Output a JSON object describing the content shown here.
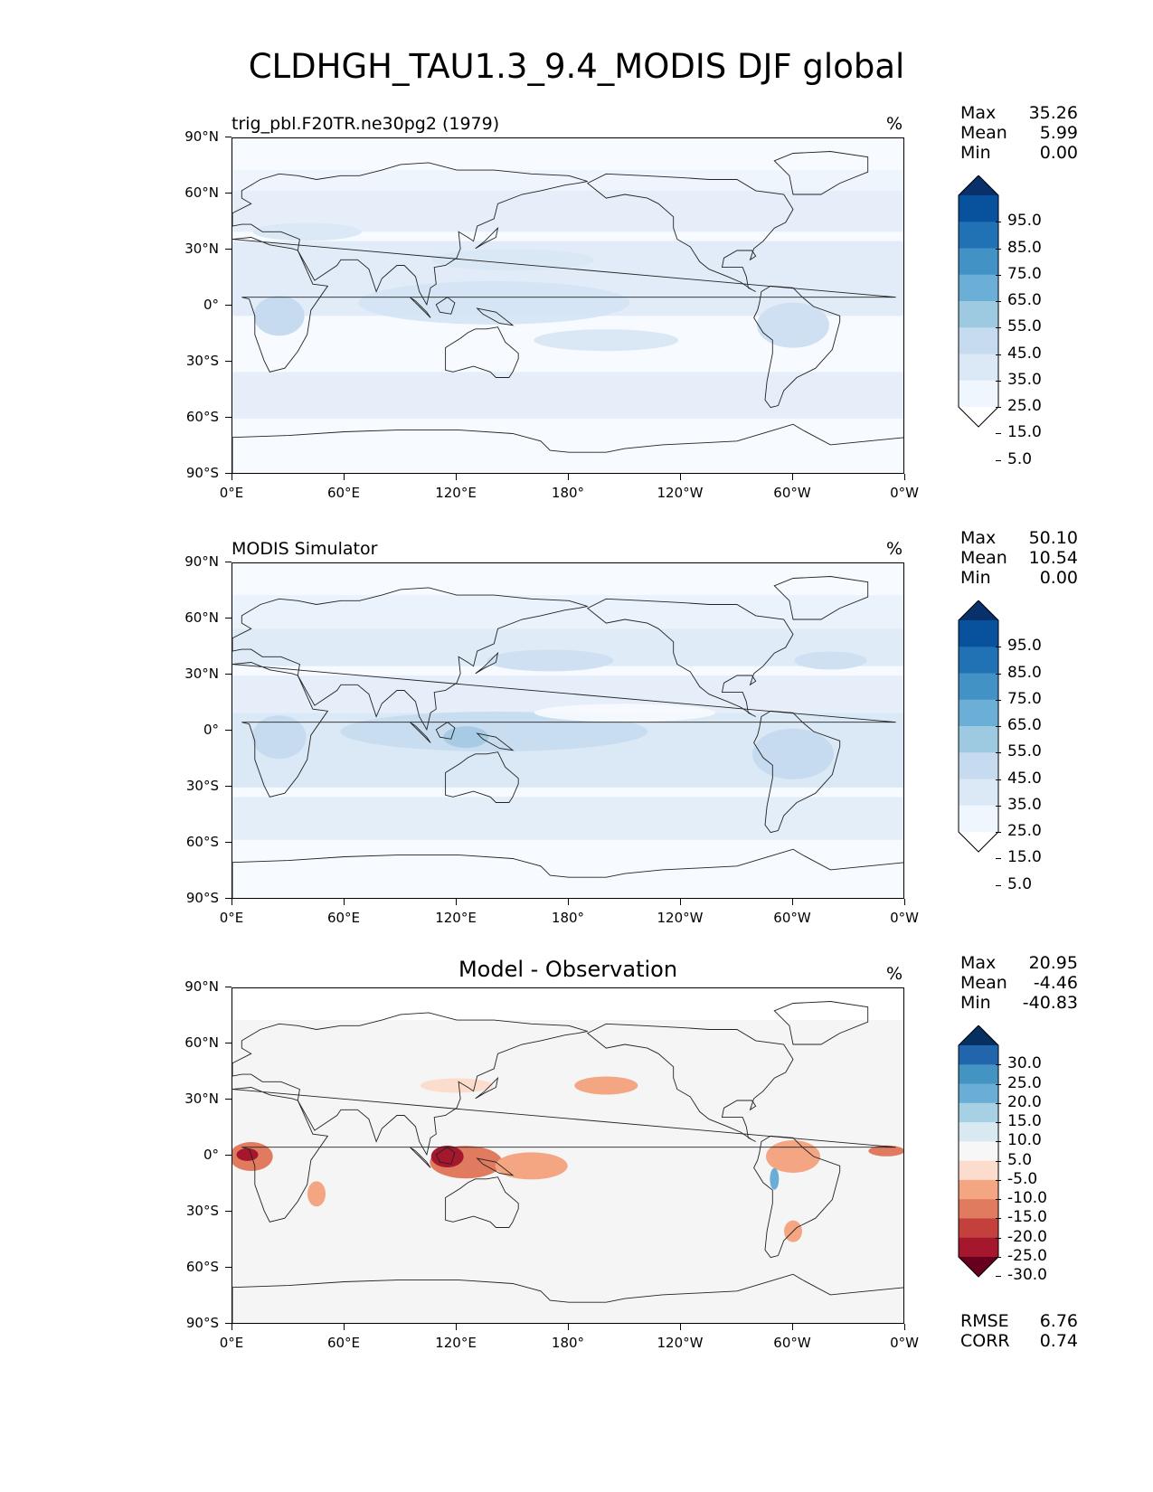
{
  "figure": {
    "title": "CLDHGH_TAU1.3_9.4_MODIS DJF global"
  },
  "axes": {
    "y_ticks": [
      "90°N",
      "60°N",
      "30°N",
      "0°",
      "30°S",
      "60°S",
      "90°S"
    ],
    "x_ticks": [
      "0°E",
      "60°E",
      "120°E",
      "180°",
      "120°W",
      "60°W",
      "0°W"
    ]
  },
  "panels": [
    {
      "title": "trig_pbl.F20TR.ne30pg2 (1979)",
      "title_style": "left",
      "units": "%",
      "stats": [
        {
          "label": "Max",
          "value": "35.26"
        },
        {
          "label": "Mean",
          "value": "5.99"
        },
        {
          "label": "Min",
          "value": "0.00"
        }
      ],
      "colorbar": {
        "labels": [
          "95.0",
          "85.0",
          "75.0",
          "65.0",
          "55.0",
          "45.0",
          "35.0",
          "25.0",
          "15.0",
          "5.0"
        ],
        "colors": [
          "#08306b",
          "#08519c",
          "#2171b5",
          "#4292c6",
          "#6baed6",
          "#9ecae1",
          "#c6dbef",
          "#dbe9f6",
          "#f0f6fd",
          "#ffffff"
        ]
      }
    },
    {
      "title": "MODIS Simulator",
      "title_style": "left",
      "units": "%",
      "stats": [
        {
          "label": "Max",
          "value": "50.10"
        },
        {
          "label": "Mean",
          "value": "10.54"
        },
        {
          "label": "Min",
          "value": "0.00"
        }
      ],
      "colorbar": {
        "labels": [
          "95.0",
          "85.0",
          "75.0",
          "65.0",
          "55.0",
          "45.0",
          "35.0",
          "25.0",
          "15.0",
          "5.0"
        ],
        "colors": [
          "#08306b",
          "#08519c",
          "#2171b5",
          "#4292c6",
          "#6baed6",
          "#9ecae1",
          "#c6dbef",
          "#dbe9f6",
          "#f0f6fd",
          "#ffffff"
        ]
      }
    },
    {
      "title": "Model - Observation",
      "title_style": "center",
      "units": "%",
      "stats": [
        {
          "label": "Max",
          "value": "20.95"
        },
        {
          "label": "Mean",
          "value": "-4.46"
        },
        {
          "label": "Min",
          "value": "-40.83"
        }
      ],
      "extra_stats": [
        {
          "label": "RMSE",
          "value": "6.76"
        },
        {
          "label": "CORR",
          "value": "0.74"
        }
      ],
      "colorbar": {
        "labels": [
          "30.0",
          "25.0",
          "20.0",
          "15.0",
          "10.0",
          "5.0",
          "-5.0",
          "-10.0",
          "-15.0",
          "-20.0",
          "-25.0",
          "-30.0"
        ],
        "colors": [
          "#053061",
          "#2166ac",
          "#4393c3",
          "#6aaed6",
          "#a6d0e4",
          "#d9e9f2",
          "#f7f7f7",
          "#fbdccd",
          "#f4a582",
          "#e07b5f",
          "#c4403d",
          "#a5172c",
          "#67001f"
        ]
      }
    }
  ]
}
